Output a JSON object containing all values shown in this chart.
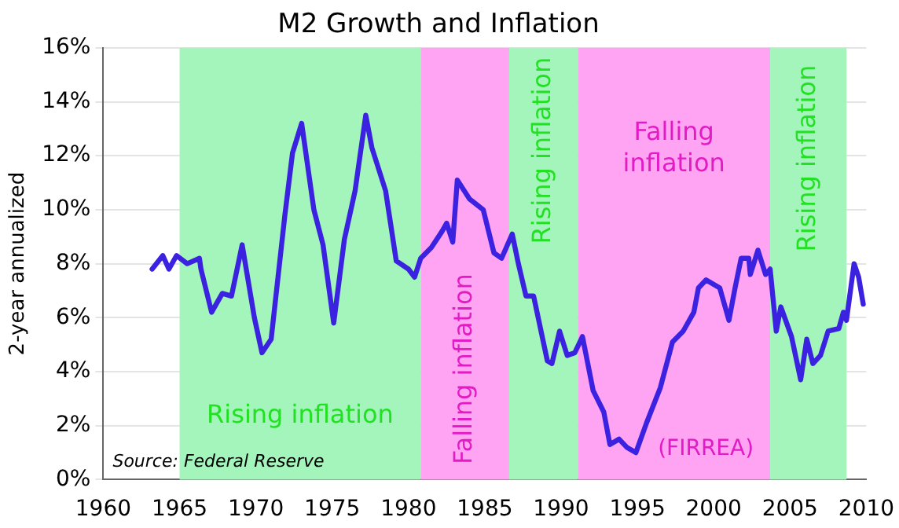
{
  "chart_data": {
    "type": "line",
    "title": "M2 Growth and Inflation",
    "ylabel": "2-year annualized",
    "x": [
      1963.2,
      1963.9,
      1964.3,
      1964.8,
      1965.5,
      1966.3,
      1966.4,
      1967.1,
      1967.8,
      1968.4,
      1969.1,
      1969.9,
      1970.4,
      1971.0,
      1971.9,
      1972.4,
      1973.0,
      1973.8,
      1974.4,
      1975.1,
      1975.8,
      1976.5,
      1977.2,
      1977.6,
      1978.5,
      1979.2,
      1980.0,
      1980.4,
      1980.8,
      1981.5,
      1982.2,
      1982.5,
      1982.9,
      1983.2,
      1984.0,
      1984.9,
      1985.6,
      1986.1,
      1986.8,
      1987.2,
      1987.7,
      1988.2,
      1989.1,
      1989.4,
      1989.9,
      1990.4,
      1990.9,
      1991.4,
      1992.1,
      1992.8,
      1993.2,
      1993.8,
      1994.3,
      1994.9,
      1995.6,
      1996.5,
      1997.3,
      1998.0,
      1998.7,
      1999.0,
      1999.5,
      2000.4,
      2001.0,
      2001.4,
      2001.8,
      2002.3,
      2002.4,
      2002.9,
      2003.4,
      2003.7,
      2004.1,
      2004.4,
      2005.1,
      2005.7,
      2006.1,
      2006.5,
      2007.0,
      2007.5,
      2008.2,
      2008.5,
      2008.7,
      2009.2,
      2009.5,
      2009.8
    ],
    "series": [
      {
        "color": "#3a22e0",
        "values": [
          7.8,
          8.3,
          7.8,
          8.3,
          8.0,
          8.2,
          7.8,
          6.2,
          6.9,
          6.8,
          8.7,
          6.0,
          4.7,
          5.2,
          9.8,
          12.1,
          13.2,
          10.0,
          8.7,
          5.8,
          8.9,
          10.7,
          13.5,
          12.3,
          10.7,
          8.1,
          7.8,
          7.5,
          8.2,
          8.6,
          9.2,
          9.5,
          8.8,
          11.1,
          10.4,
          10.0,
          8.4,
          8.2,
          9.1,
          8.0,
          6.8,
          6.8,
          4.4,
          4.3,
          5.5,
          4.6,
          4.7,
          5.3,
          3.3,
          2.5,
          1.3,
          1.5,
          1.2,
          1.0,
          2.1,
          3.4,
          5.1,
          5.5,
          6.2,
          7.1,
          7.4,
          7.1,
          5.9,
          7.1,
          8.2,
          8.2,
          7.6,
          8.5,
          7.6,
          7.8,
          5.5,
          6.4,
          5.3,
          3.7,
          5.2,
          4.3,
          4.6,
          5.5,
          5.6,
          6.2,
          5.9,
          8.0,
          7.5,
          6.5
        ]
      }
    ],
    "xlim": [
      1960,
      2010
    ],
    "xticks": [
      1960,
      1965,
      1970,
      1975,
      1980,
      1985,
      1990,
      1995,
      2000,
      2005,
      2010
    ],
    "ylim": [
      0,
      16
    ],
    "yticks": [
      {
        "value": 0,
        "label": "0%"
      },
      {
        "value": 2,
        "label": "2%"
      },
      {
        "value": 4,
        "label": "4%"
      },
      {
        "value": 6,
        "label": "6%"
      },
      {
        "value": 8,
        "label": "8%"
      },
      {
        "value": 10,
        "label": "10%"
      },
      {
        "value": 12,
        "label": "12%"
      },
      {
        "value": 14,
        "label": "14%"
      },
      {
        "value": 16,
        "label": "16%"
      }
    ],
    "grid": "y",
    "legend": false,
    "marker": "none",
    "line_style": "solid",
    "bands": [
      {
        "axis": "x",
        "from": 1965,
        "to": 1980.8,
        "label": "Rising inflation",
        "color": "#a4f5bc"
      },
      {
        "axis": "x",
        "from": 1980.8,
        "to": 1986.6,
        "label": "Falling inflation",
        "color": "#ffa4f2"
      },
      {
        "axis": "x",
        "from": 1986.6,
        "to": 1991.1,
        "label": "Rising inflation",
        "color": "#a4f5bc"
      },
      {
        "axis": "x",
        "from": 1991.1,
        "to": 2003.7,
        "label": "Falling inflation",
        "color": "#ffa4f2"
      },
      {
        "axis": "x",
        "from": 2003.7,
        "to": 2008.7,
        "label": "Rising inflation",
        "color": "#a4f5bc"
      }
    ],
    "annotations": [
      "(FIRREA)",
      "Source: Federal Reserve"
    ]
  }
}
